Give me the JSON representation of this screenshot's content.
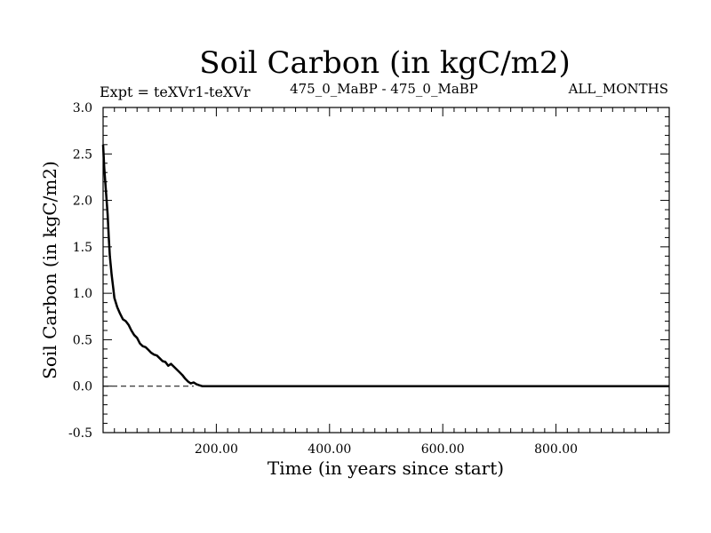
{
  "chart_data": {
    "type": "line",
    "title": "Soil Carbon (in kgC/m2)",
    "subtitle_left": "Expt = teXVr1-teXVr",
    "subtitle_center": "475_0_MaBP - 475_0_MaBP",
    "subtitle_right": "ALL_MONTHS",
    "xlabel": "Time (in years since start)",
    "ylabel": "Soil Carbon (in kgC/m2)",
    "xlim": [
      0,
      1000
    ],
    "ylim": [
      -0.5,
      3.0
    ],
    "x_ticks": [
      200,
      400,
      600,
      800
    ],
    "x_tick_labels": [
      "200.00",
      "400.00",
      "600.00",
      "800.00"
    ],
    "y_ticks": [
      -0.5,
      0.0,
      0.5,
      1.0,
      1.5,
      2.0,
      2.5,
      3.0
    ],
    "y_tick_labels": [
      "-0.5",
      "0.0",
      "0.5",
      "1.0",
      "1.5",
      "2.0",
      "2.5",
      "3.0"
    ],
    "reference_line": {
      "y": 0.0,
      "style": "dashed"
    },
    "grid": false,
    "color": "#000000",
    "series": [
      {
        "x": [
          0,
          2,
          5,
          8,
          10,
          12,
          15,
          18,
          20,
          25,
          30,
          35,
          40,
          45,
          50,
          55,
          60,
          65,
          70,
          75,
          80,
          85,
          90,
          95,
          100,
          105,
          110,
          115,
          120,
          125,
          130,
          135,
          140,
          145,
          150,
          155,
          160,
          165,
          170,
          175,
          180,
          190,
          200,
          250,
          300,
          400,
          500,
          600,
          700,
          800,
          900,
          1000
        ],
        "y": [
          2.6,
          2.35,
          2.1,
          1.85,
          1.6,
          1.4,
          1.2,
          1.05,
          0.95,
          0.85,
          0.78,
          0.72,
          0.7,
          0.66,
          0.6,
          0.55,
          0.52,
          0.46,
          0.43,
          0.42,
          0.39,
          0.36,
          0.34,
          0.33,
          0.3,
          0.27,
          0.26,
          0.22,
          0.24,
          0.21,
          0.18,
          0.15,
          0.12,
          0.08,
          0.05,
          0.03,
          0.04,
          0.02,
          0.01,
          0.0,
          0.0,
          0.0,
          0.0,
          0.0,
          0.0,
          0.0,
          0.0,
          0.0,
          0.0,
          0.0,
          0.0,
          0.0
        ]
      }
    ]
  }
}
